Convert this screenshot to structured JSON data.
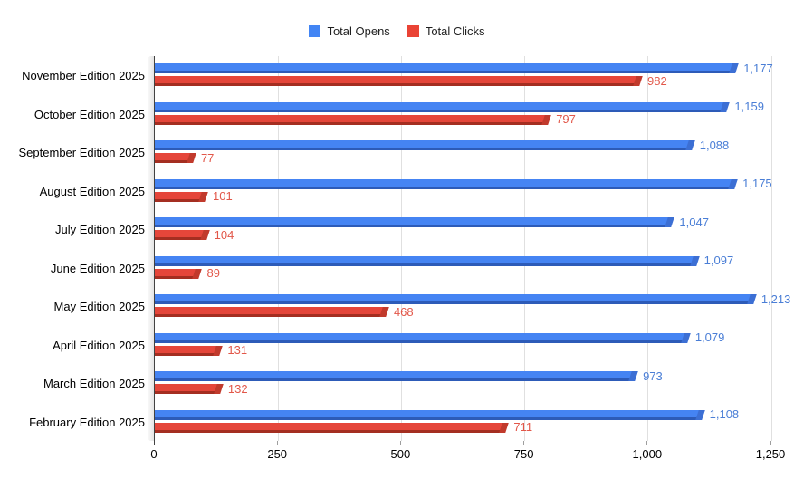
{
  "legend": [
    {
      "label": "Total Opens",
      "color": "#4285f4"
    },
    {
      "label": "Total Clicks",
      "color": "#ea4335"
    }
  ],
  "chart_data": {
    "type": "bar",
    "orientation": "horizontal",
    "title": "",
    "xlabel": "",
    "ylabel": "",
    "legend_position": "top-center",
    "grid": true,
    "xlim": [
      0,
      1250
    ],
    "x_ticks": [
      0,
      250,
      500,
      750,
      1000,
      1250
    ],
    "categories": [
      "November Edition 2025",
      "October Edition 2025",
      "September Edition 2025",
      "August Edition 2025",
      "July Edition 2025",
      "June Edition 2025",
      "May Edition 2025",
      "April Edition 2025",
      "March Edition 2025",
      "February Edition 2025"
    ],
    "series": [
      {
        "name": "Total Opens",
        "color": "#4584f3",
        "edge_color": "#2d5bb8",
        "cap_color": "#3c6fd4",
        "label_color": "#4a7ed6",
        "values": [
          1177,
          1159,
          1088,
          1175,
          1047,
          1097,
          1213,
          1079,
          973,
          1108
        ]
      },
      {
        "name": "Total Clicks",
        "color": "#e5463a",
        "edge_color": "#a42e21",
        "cap_color": "#c13a2c",
        "label_color": "#e25749",
        "values": [
          982,
          797,
          77,
          101,
          104,
          89,
          468,
          131,
          132,
          711
        ]
      }
    ]
  }
}
